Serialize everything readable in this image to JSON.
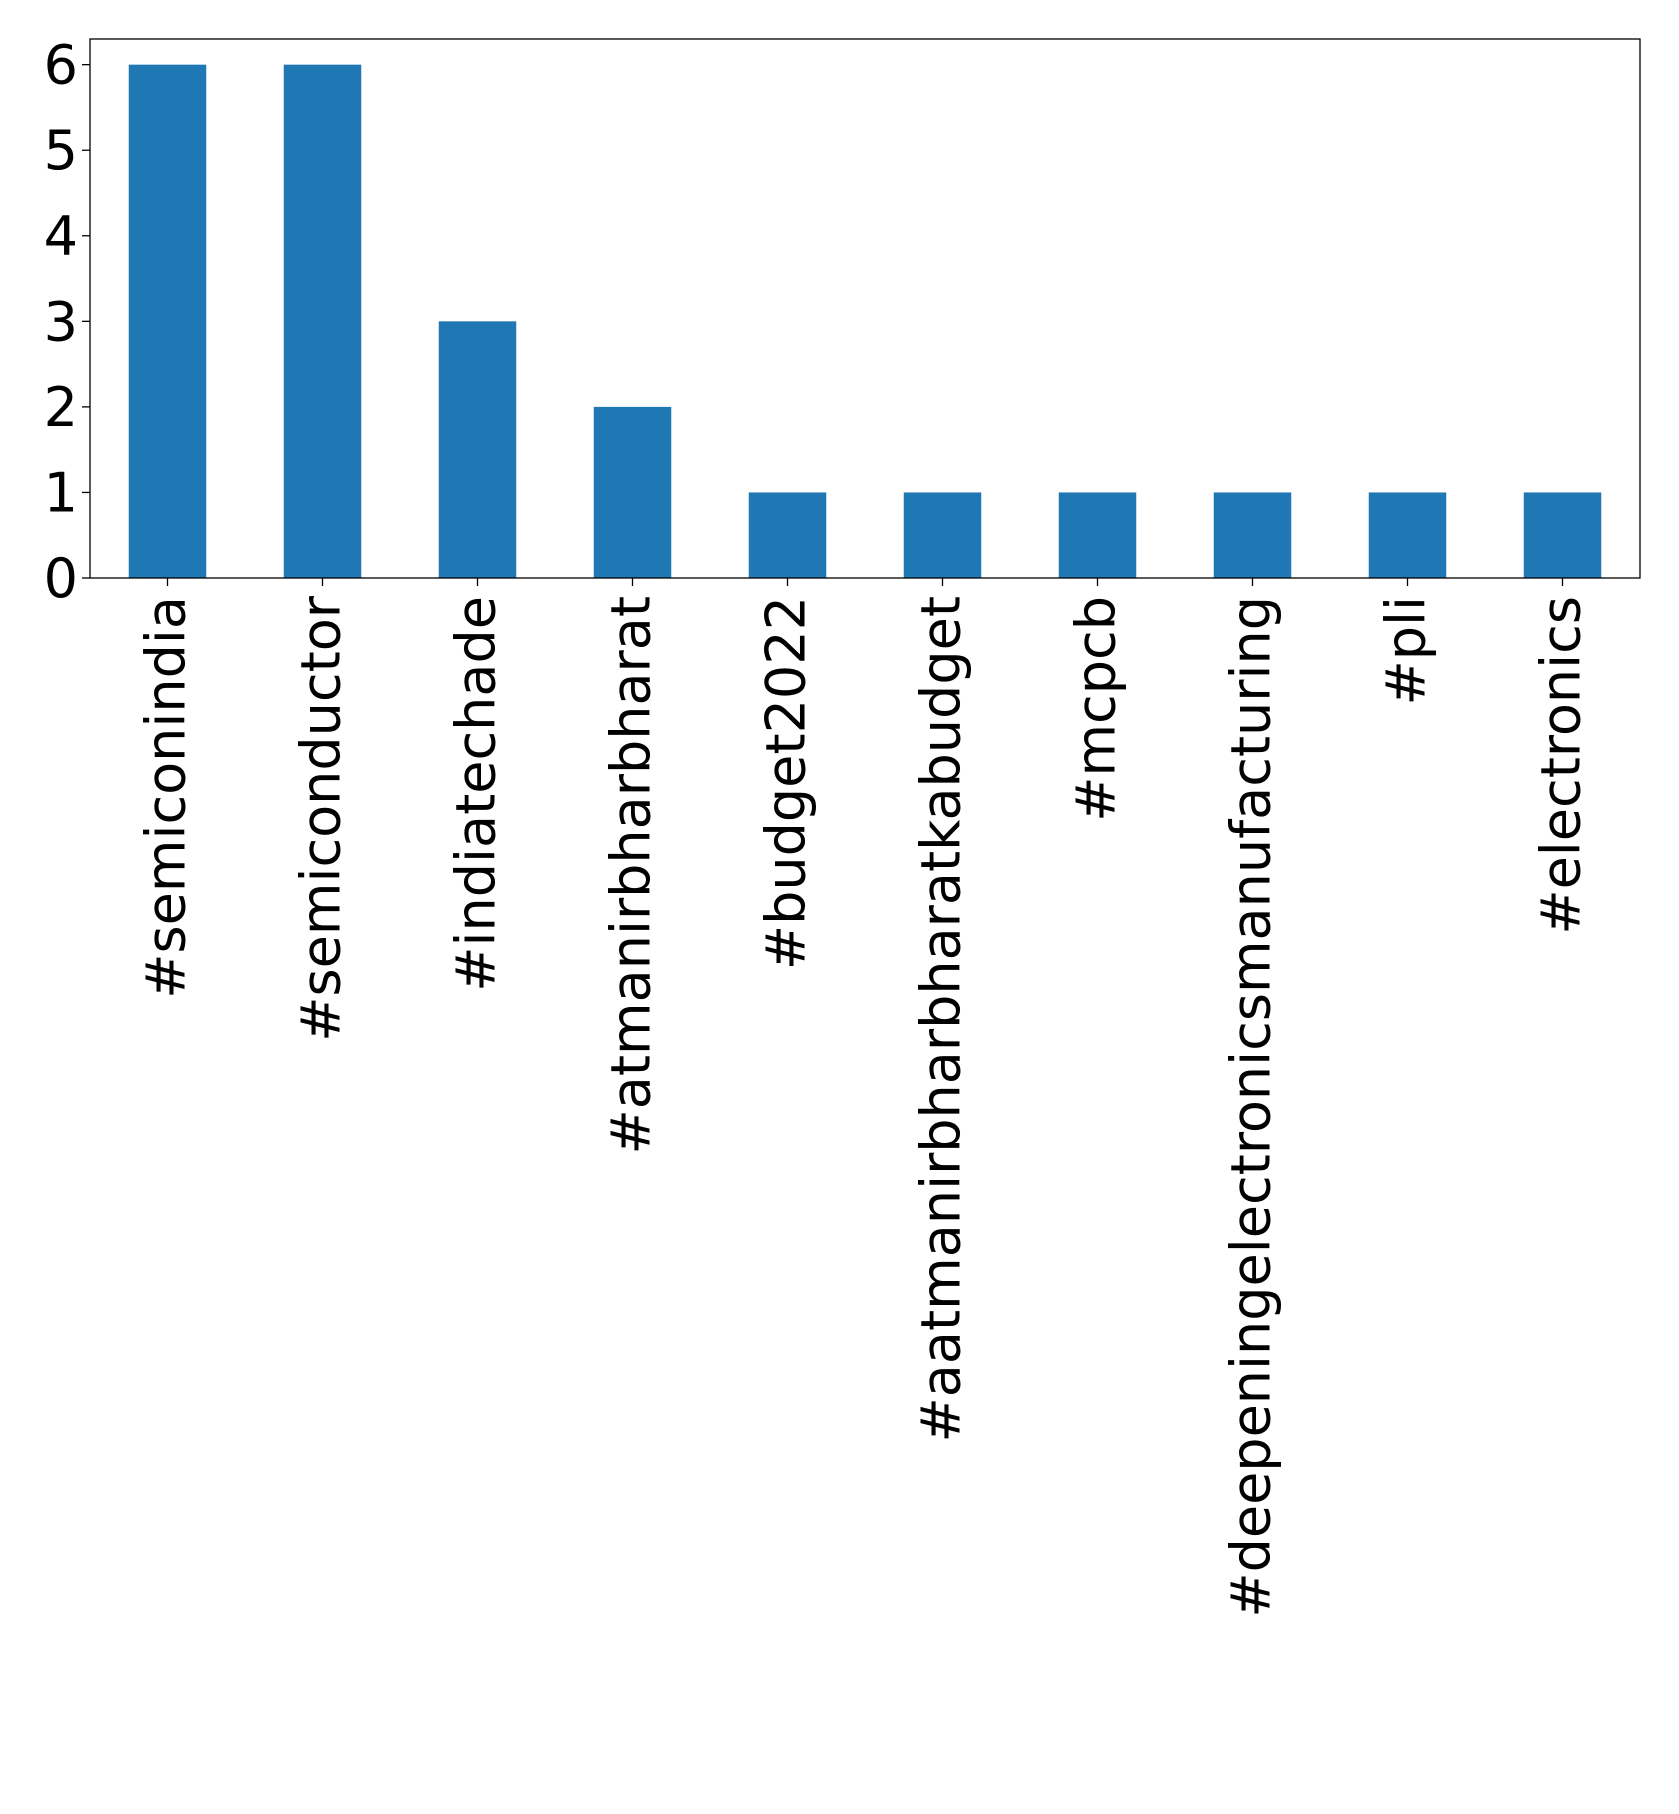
{
  "chart_data": {
    "type": "bar",
    "title": "",
    "xlabel": "",
    "ylabel": "",
    "categories": [
      "#semiconindia",
      "#semiconductor",
      "#indiatechade",
      "#atmanirbharbharat",
      "#budget2022",
      "#aatmanirbharbharatkabudget",
      "#mcpcb",
      "#deepeningelectronicsmanufacturing",
      "#pli",
      "#electronics"
    ],
    "values": [
      6,
      6,
      3,
      2,
      1,
      1,
      1,
      1,
      1,
      1
    ],
    "ylim": [
      0,
      6.3
    ],
    "yticks": [
      0,
      1,
      2,
      3,
      4,
      5,
      6
    ],
    "bar_color": "#1f77b4",
    "grid": false,
    "legend": "none"
  }
}
